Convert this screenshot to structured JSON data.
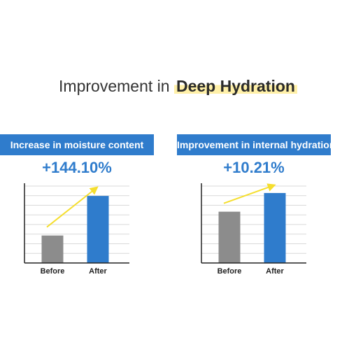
{
  "title": {
    "prefix": "Improvement in ",
    "highlight": "Deep Hydration"
  },
  "colors": {
    "label_bg": "#2f7ccc",
    "pct": "#2f7ccc",
    "before_bar": "#8c8c8c",
    "after_bar": "#2f7ccc",
    "arrow": "#f5de2e",
    "grid": "#d9d9d9"
  },
  "chart_data": [
    {
      "type": "bar",
      "label": "Increase in moisture content",
      "change": "+144.10%",
      "categories": [
        "Before",
        "After"
      ],
      "values": [
        1,
        2.44
      ],
      "ylim": [
        0,
        2.8
      ],
      "grid": true
    },
    {
      "type": "bar",
      "label": "Improvement in internal hydration",
      "change": "+10.21%",
      "categories": [
        "Before",
        "After"
      ],
      "values": [
        1,
        1.102
      ],
      "ylim": [
        0.72,
        1.14
      ],
      "grid": true
    }
  ]
}
